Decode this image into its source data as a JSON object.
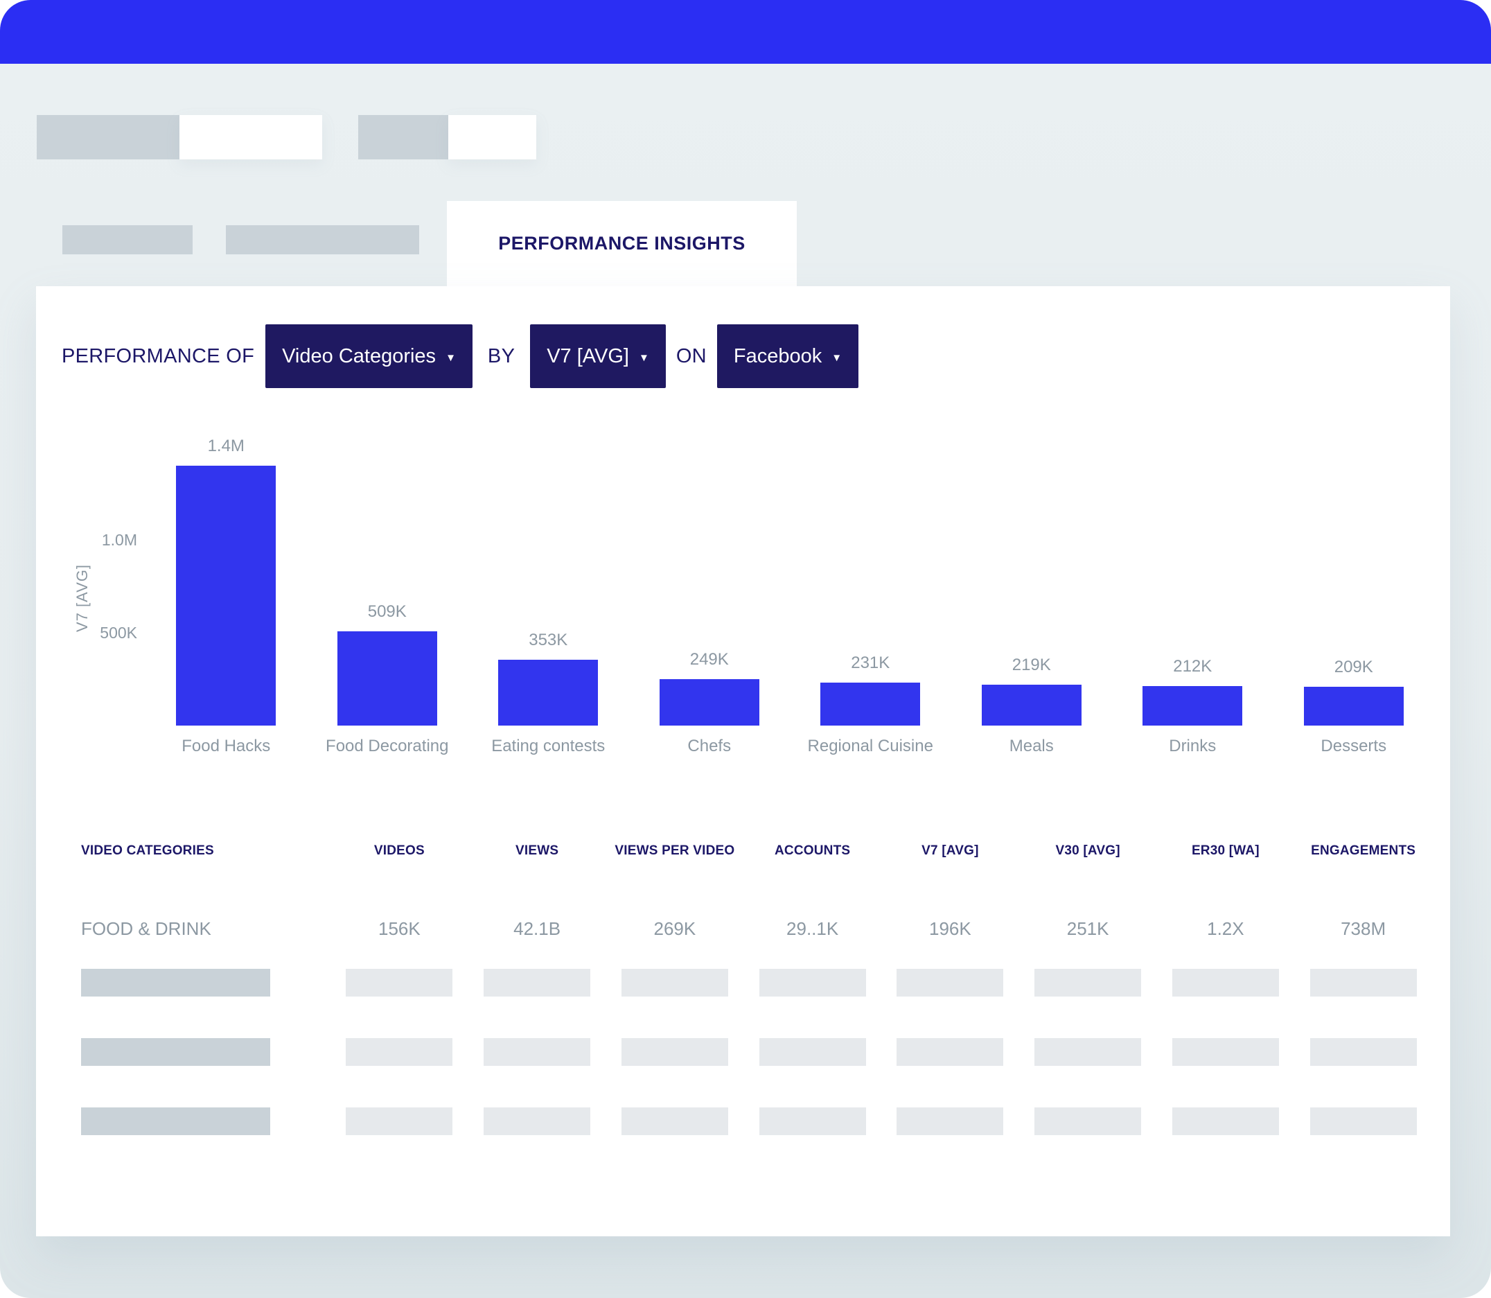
{
  "tab": {
    "label": "PERFORMANCE INSIGHTS"
  },
  "filter_bar": {
    "prefix_label": "PERFORMANCE OF",
    "by_label": "BY",
    "on_label": "ON",
    "dropdowns": [
      {
        "id": "dimension",
        "value": "Video Categories",
        "caret": "▼"
      },
      {
        "id": "metric",
        "value": "V7 [AVG]",
        "caret": "▼"
      },
      {
        "id": "platform",
        "value": "Facebook",
        "caret": "▼"
      }
    ]
  },
  "chart_data": {
    "type": "bar",
    "title": "",
    "categories": [
      "Food Hacks",
      "Food Decorating",
      "Eating contests",
      "Chefs",
      "Regional Cuisine",
      "Meals",
      "Drinks",
      "Desserts"
    ],
    "values": [
      1400000,
      509000,
      353000,
      249000,
      231000,
      219000,
      212000,
      209000
    ],
    "value_labels": [
      "1.4M",
      "509K",
      "353K",
      "249K",
      "231K",
      "219K",
      "212K",
      "209K"
    ],
    "xlabel": "",
    "ylabel": "V7 [AVG]",
    "yticks": [
      {
        "value": 500000,
        "label": "500K"
      },
      {
        "value": 1000000,
        "label": "1.0M"
      }
    ],
    "ylim": [
      0,
      1565000
    ],
    "grid": false,
    "legend": "none",
    "bar_color": "#3235EE"
  },
  "table": {
    "columns": [
      "VIDEO CATEGORIES",
      "VIDEOS",
      "VIEWS",
      "VIEWS PER VIDEO",
      "ACCOUNTS",
      "V7 [AVG]",
      "V30 [AVG]",
      "ER30 [WA]",
      "ENGAGEMENTS"
    ],
    "rows": [
      {
        "cells": [
          "FOOD & DRINK",
          "156K",
          "42.1B",
          "269K",
          "29..1K",
          "196K",
          "251K",
          "1.2X",
          "738M"
        ]
      }
    ],
    "skeleton_row_count": 3
  },
  "colors": {
    "topbar_blue": "#2B2EF3",
    "navy": "#1C1767",
    "dropdown_navy": "#1F1961",
    "bar_blue": "#3235EE",
    "muted_gray_text": "#8C98A2",
    "skeleton_dark": "#C9D2D8",
    "skeleton_light": "#E6E9EC",
    "panel_white": "#FFFFFF"
  }
}
